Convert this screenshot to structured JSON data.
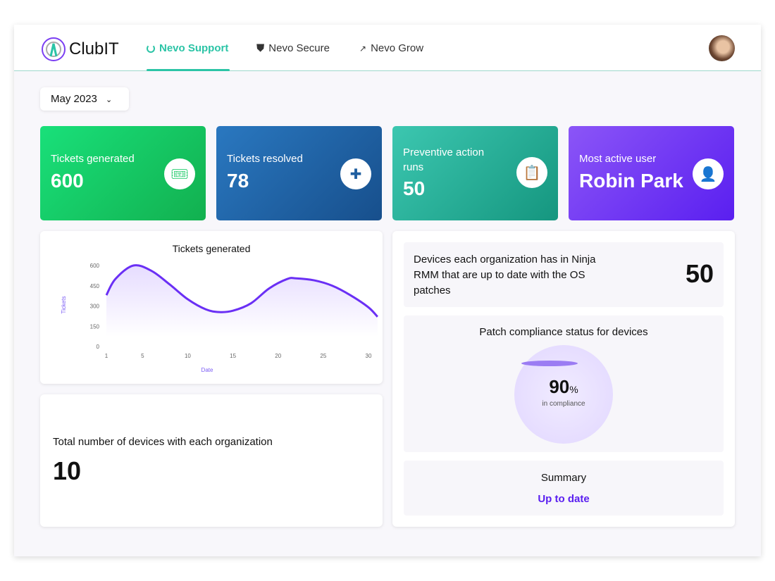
{
  "nav": {
    "brand": "ClubIT",
    "tabs": [
      {
        "label": "Nevo Support",
        "icon": "spinner-icon",
        "active": true
      },
      {
        "label": "Nevo Secure",
        "icon": "shield-icon"
      },
      {
        "label": "Nevo Grow",
        "icon": "trend-up-icon"
      }
    ]
  },
  "filter": {
    "month": "May 2023"
  },
  "stats": [
    {
      "label": "Tickets generated",
      "value": "600",
      "icon": "ticket-icon",
      "color": "#17c964"
    },
    {
      "label": "Tickets resolved",
      "value": "78",
      "icon": "puzzle-icon",
      "color": "#1f5fa0"
    },
    {
      "label": "Preventive action runs",
      "value": "50",
      "icon": "clipboard-check-icon",
      "color": "#1ea48f"
    },
    {
      "label": "Most active user",
      "value": "Robin Park",
      "icon": "user-icon",
      "color": "#6a2ff5"
    }
  ],
  "devices_total": {
    "label": "Total number of devices with each organization",
    "value": "10"
  },
  "devices_uptodate": {
    "label": "Devices each organization has in Ninja RMM that are up to date with the OS patches",
    "value": "50"
  },
  "compliance": {
    "title": "Patch compliance status for devices",
    "value": "90",
    "unit": "%",
    "caption": "in compliance",
    "color": "#6a2ff5"
  },
  "summary": {
    "title": "Summary",
    "status": "Up to date"
  },
  "chart_data": {
    "type": "area",
    "title": "Tickets generated",
    "xlabel": "Date",
    "ylabel": "Tickets",
    "ylim": [
      0,
      600
    ],
    "yticks": [
      0,
      150,
      300,
      450,
      600
    ],
    "xticks": [
      1,
      5,
      10,
      15,
      20,
      25,
      30
    ],
    "x": [
      1,
      2,
      4,
      6,
      8,
      10,
      12,
      13.5,
      15,
      17,
      19,
      21,
      22,
      24,
      26,
      28,
      30,
      31
    ],
    "y": [
      380,
      500,
      600,
      560,
      460,
      350,
      275,
      255,
      265,
      320,
      430,
      500,
      505,
      490,
      450,
      380,
      290,
      220
    ],
    "color": "#6a2ff5"
  }
}
